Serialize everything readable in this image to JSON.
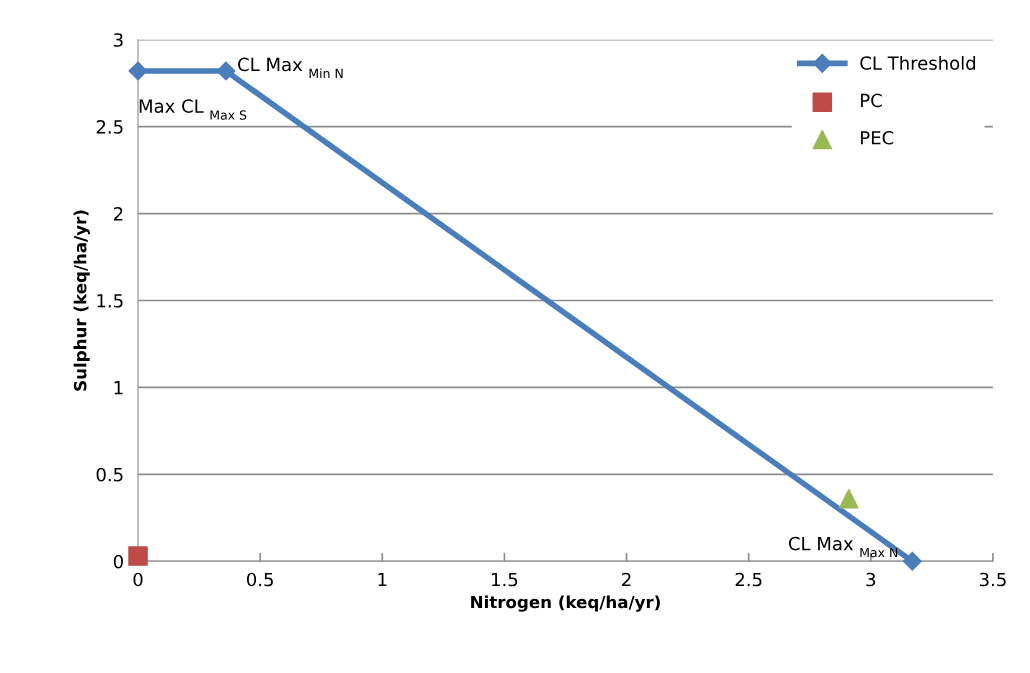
{
  "chart_data": {
    "type": "line",
    "xlabel": "Nitrogen (keq/ha/yr)",
    "ylabel": "Sulphur (keq/ha/yr)",
    "xlim": [
      0,
      3.5
    ],
    "xticks": [
      0,
      0.5,
      1,
      1.5,
      2,
      2.5,
      3,
      3.5
    ],
    "ylim": [
      0,
      3
    ],
    "yticks": [
      0,
      0.5,
      1,
      1.5,
      2,
      2.5,
      3
    ],
    "grid": "y",
    "legend": "top right",
    "series": [
      {
        "name": "CL Threshold",
        "color": "#4a7ebb",
        "marker": "diamond",
        "line_style": "solid",
        "x": [
          0,
          0.36,
          3.17
        ],
        "values": [
          2.82,
          2.82,
          0
        ]
      },
      {
        "name": "PC",
        "type": "scatter",
        "color": "#be4b48",
        "marker": "square",
        "x": [
          0
        ],
        "values": [
          0.03
        ]
      },
      {
        "name": "PEC",
        "type": "scatter",
        "color": "#98b954",
        "marker": "triangle",
        "x": [
          2.91
        ],
        "values": [
          0.36
        ]
      }
    ],
    "annotations": [
      {
        "text": "CL Max $_{Min N}$",
        "x": 0.36,
        "y": 2.82
      },
      {
        "text": "Max CL $_{Max S}$",
        "x": 0,
        "y": 2.82
      },
      {
        "text": "CL Max $_{Max N}$",
        "x": 3.17,
        "y": 0
      }
    ]
  }
}
